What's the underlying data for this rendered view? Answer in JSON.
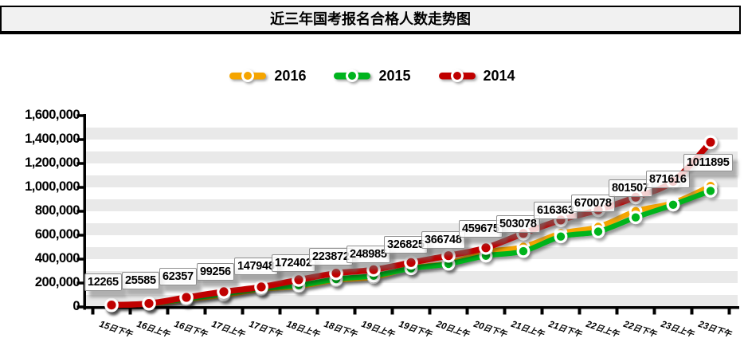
{
  "title": "近三年国考报名合格人数走势图",
  "legend": [
    {
      "label": "2016",
      "color": "#F5A500"
    },
    {
      "label": "2015",
      "color": "#00B41E"
    },
    {
      "label": "2014",
      "color": "#C00000"
    }
  ],
  "chart_data": {
    "type": "line",
    "title": "近三年国考报名合格人数走势图",
    "categories": [
      "15日下午",
      "16日上午",
      "16日下午",
      "17日上午",
      "17日下午",
      "18日上午",
      "18日下午",
      "19日上午",
      "19日下午",
      "20日上午",
      "20日下午",
      "21日上午",
      "21日下午",
      "22日上午",
      "22日下午",
      "23日上午",
      "23日下午"
    ],
    "series": [
      {
        "name": "2016",
        "color": "#F5A500",
        "values": [
          12265,
          25585,
          62357,
          99256,
          147948,
          172402,
          223872,
          248985,
          326825,
          366748,
          459675,
          503078,
          616363,
          670078,
          801507,
          871616,
          1011895
        ],
        "data_labels": [
          "12265",
          "25585",
          "62357",
          "99256",
          "147948",
          "172402",
          "223872",
          "248985",
          "326825",
          "366748",
          "459675",
          "503078",
          "616363",
          "670078",
          "801507",
          "871616",
          "1011895"
        ]
      },
      {
        "name": "2015",
        "color": "#00B41E",
        "values": [
          13500,
          26500,
          68000,
          110000,
          155000,
          181000,
          233000,
          261000,
          322000,
          360000,
          428000,
          466000,
          589000,
          630000,
          749000,
          855000,
          971000
        ]
      },
      {
        "name": "2014",
        "color": "#C00000",
        "values": [
          16000,
          29000,
          80000,
          127000,
          167000,
          227000,
          282000,
          311000,
          371000,
          429000,
          495000,
          615000,
          727000,
          811000,
          918000,
          1051000,
          1378000
        ]
      }
    ],
    "ylim": [
      0,
      1600000
    ],
    "y_ticks": [
      "0",
      "200,000",
      "400,000",
      "600,000",
      "800,000",
      "1,000,000",
      "1,200,000",
      "1,400,000",
      "1,600,000"
    ],
    "grid": "alternating horizontal 100k bands",
    "legend_position": "top"
  }
}
